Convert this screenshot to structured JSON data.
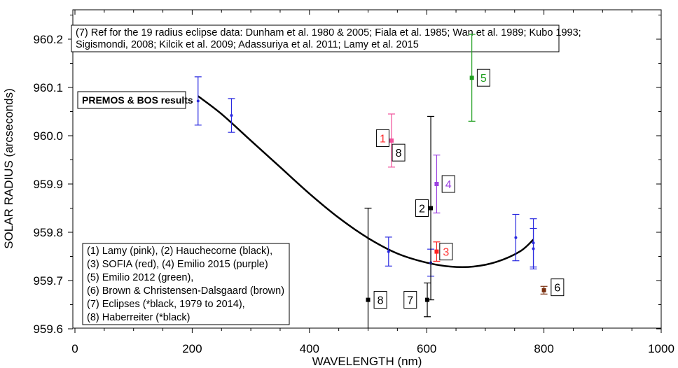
{
  "chart_data": {
    "type": "scatter",
    "title": "",
    "xlabel": "WAVELENGTH (nm)",
    "ylabel": "SOLAR RADIUS (arcseconds)",
    "xlim": [
      0,
      1000
    ],
    "ylim": [
      959.6,
      960.25
    ],
    "x_ticks": [
      0,
      200,
      400,
      600,
      800,
      1000
    ],
    "x_tick_labels": [
      "0",
      "200",
      "400",
      "600",
      "800",
      "1000"
    ],
    "y_ticks": [
      959.6,
      959.7,
      959.8,
      959.9,
      960.0,
      960.1,
      960.2
    ],
    "y_tick_labels": [
      "959.6",
      "959.7",
      "959.8",
      "959.9",
      "960.0",
      "960.1",
      "960.2"
    ],
    "ref_lines": [
      "(7) Ref for the 19  radius eclipse data: Dunham et al. 1980 & 2005; Fiala et al. 1985; Wan et al. 1989; Kubo 1993;",
      "Sigismondi, 2008; Kilcik et al. 2009; Adassuriya et al. 2011; Lamy et al. 2015"
    ],
    "premos_label": "PREMOS & BOS results",
    "legend_lines": [
      "(1) Lamy (pink), (2) Hauchecorne (black),",
      "(3) SOFIA (red), (4) Emilio 2015 (purple)",
      "(5) Emilio 2012 (green),",
      "(6) Brown & Christensen-Dalsgaard (brown)",
      "(7) Eclipses (*black, 1979 to 2014),",
      "(8) Haberreiter (*black)"
    ],
    "fit_curve": {
      "color": "#000000",
      "x": [
        210,
        250,
        300,
        350,
        400,
        450,
        500,
        550,
        600,
        640,
        680,
        720,
        760,
        782
      ],
      "y": [
        960.082,
        960.045,
        959.99,
        959.935,
        959.88,
        959.83,
        959.788,
        959.756,
        959.737,
        959.729,
        959.729,
        959.739,
        959.761,
        959.785
      ]
    },
    "points": [
      {
        "x": 210,
        "y": 960.072,
        "err": 0.05,
        "color": "#2a2ae0",
        "label": ""
      },
      {
        "x": 267,
        "y": 960.042,
        "err": 0.035,
        "color": "#2a2ae0",
        "label": ""
      },
      {
        "x": 535,
        "y": 959.76,
        "err": 0.03,
        "color": "#2a2ae0",
        "label": ""
      },
      {
        "x": 607,
        "y": 959.737,
        "err": 0.028,
        "color": "#2a2ae0",
        "label": ""
      },
      {
        "x": 752,
        "y": 959.789,
        "err": 0.048,
        "color": "#2a2ae0",
        "label": ""
      },
      {
        "x": 782,
        "y": 959.766,
        "err": 0.042,
        "color": "#2a2ae0",
        "label": ""
      },
      {
        "x": 782,
        "y": 959.778,
        "err": 0.05,
        "color": "#2a2ae0",
        "label": ""
      },
      {
        "x": 540,
        "y": 959.99,
        "err": 0.055,
        "color": "#f0509a",
        "label": "1"
      },
      {
        "x": 607,
        "y": 959.85,
        "err": 0.19,
        "color": "#000000",
        "label": "2"
      },
      {
        "x": 617,
        "y": 959.76,
        "err": 0.02,
        "color": "#ff2020",
        "label": "3"
      },
      {
        "x": 617,
        "y": 959.9,
        "err": 0.06,
        "color": "#9b3fe0",
        "label": "4"
      },
      {
        "x": 677,
        "y": 960.12,
        "err": 0.09,
        "color": "#22a022",
        "label": "5"
      },
      {
        "x": 800,
        "y": 959.68,
        "err": 0.008,
        "color": "#7a3010",
        "label": "6"
      },
      {
        "x": 601,
        "y": 959.66,
        "err": 0.035,
        "color": "#000000",
        "label": "7"
      },
      {
        "x": 500,
        "y": 959.66,
        "err": 0.19,
        "color": "#000000",
        "label": "8"
      }
    ],
    "point_labels": [
      {
        "text": "1",
        "color": "#ff3030",
        "x": 525,
        "y": 959.995
      },
      {
        "text": "8",
        "color": "#000000",
        "x": 552,
        "y": 959.965
      },
      {
        "text": "2",
        "color": "#000000",
        "x": 592,
        "y": 959.85
      },
      {
        "text": "3",
        "color": "#ff3030",
        "x": 633,
        "y": 959.76
      },
      {
        "text": "4",
        "color": "#9b3fe0",
        "x": 637,
        "y": 959.9
      },
      {
        "text": "5",
        "color": "#22a022",
        "x": 697,
        "y": 960.12
      },
      {
        "text": "6",
        "color": "#000000",
        "x": 823,
        "y": 959.686
      },
      {
        "text": "7",
        "color": "#000000",
        "x": 572,
        "y": 959.66
      },
      {
        "text": "8",
        "color": "#000000",
        "x": 521,
        "y": 959.66
      }
    ]
  }
}
